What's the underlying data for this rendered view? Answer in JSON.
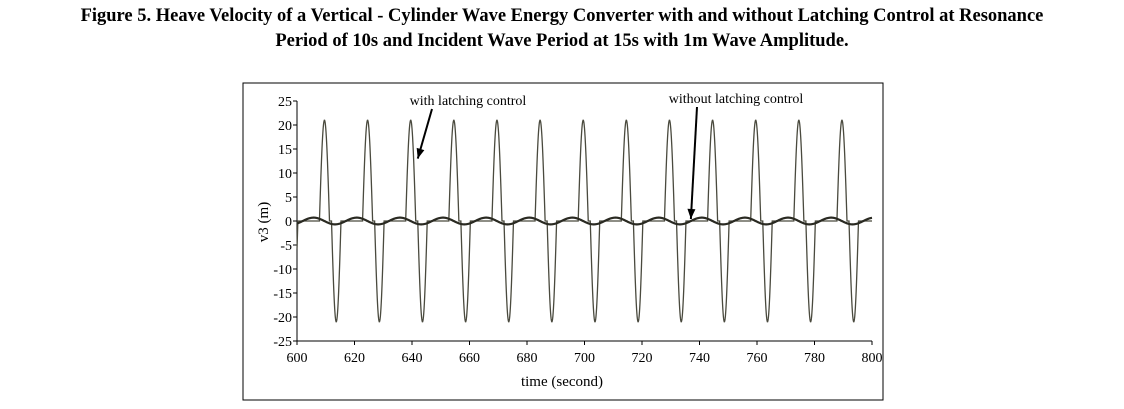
{
  "figure": {
    "caption_line1": "Figure 5. Heave Velocity of  a Vertical - Cylinder Wave Energy Converter with and without Latching Control at Resonance",
    "caption_line2": "Period of 10s and Incident Wave Period at 15s with 1m Wave Amplitude."
  },
  "chart_data": {
    "type": "line",
    "xlabel": "time (second)",
    "ylabel": "v3 (m)",
    "xlim": [
      600,
      800
    ],
    "ylim": [
      -25,
      25
    ],
    "xticks": [
      600,
      620,
      640,
      660,
      680,
      700,
      720,
      740,
      760,
      780,
      800
    ],
    "yticks": [
      25,
      20,
      15,
      10,
      5,
      0,
      -5,
      -10,
      -15,
      -20,
      -25
    ],
    "grid": false,
    "series": [
      {
        "key": "with",
        "annotation": "with latching control",
        "description": "latched oscillation: holds near 0, then a sinusoidal swing of amplitude ~21 (period ~15 s)",
        "amplitude": 21,
        "period": 15,
        "color": "#4a4a3e"
      },
      {
        "key": "without",
        "annotation": "without latching control",
        "description": "small oscillation around 0 with amplitude ~0.7",
        "amplitude": 0.7,
        "period": 15,
        "color": "#2a2a22"
      }
    ],
    "annotations": [
      {
        "text": "with latching control",
        "target_x": 642,
        "target_y": 13
      },
      {
        "text": "without latching control",
        "target_x": 737,
        "target_y": 0
      }
    ]
  }
}
